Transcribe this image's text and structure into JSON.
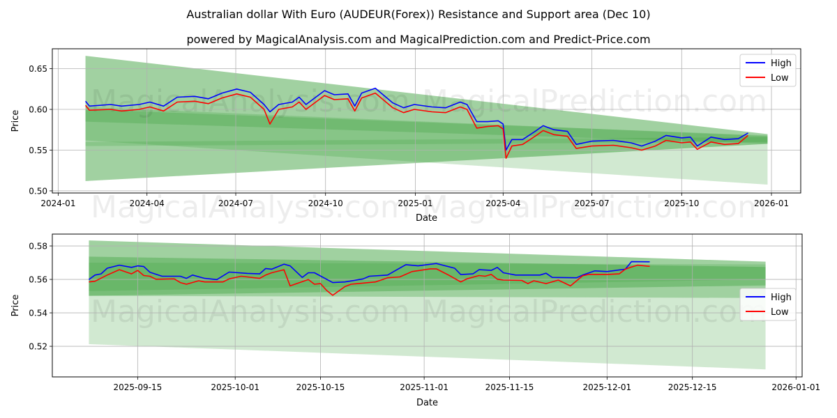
{
  "title": "Australian dollar With Euro (AUDEUR(Forex)) Resistance and Support area (Dec 10)",
  "subtitle": "powered by MagicalAnalysis.com and MagicalPrediction.com and Predict-Price.com",
  "colors": {
    "high": "#0000ff",
    "low": "#ff0000",
    "band": "#2e9a2e"
  },
  "chart_data": [
    {
      "type": "line",
      "xlabel": "Date",
      "ylabel": "Price",
      "xlim": [
        "2023-12-26",
        "2026-01-31"
      ],
      "ylim": [
        0.4974,
        0.6744
      ],
      "grid": true,
      "legend_position": "top-right",
      "legend": [
        "High",
        "Low"
      ],
      "watermarks": [
        "MagicalAnalysis.com",
        "MagicalPrediction.com"
      ],
      "yticks": [
        0.5,
        0.55,
        0.6,
        0.65
      ],
      "ytick_labels": [
        "0.50",
        "0.55",
        "0.60",
        "0.65"
      ],
      "xticks": [
        "2024-01-01",
        "2024-04-01",
        "2024-07-01",
        "2024-10-01",
        "2025-01-01",
        "2025-04-01",
        "2025-07-01",
        "2025-10-01",
        "2026-01-01"
      ],
      "xtick_labels": [
        "2024-01",
        "2024-04",
        "2024-07",
        "2024-10",
        "2025-01",
        "2025-04",
        "2025-07",
        "2025-10",
        "2026-01"
      ],
      "bands": [
        {
          "start": "2024-01-29",
          "end": "2025-12-28",
          "upper": [
            0.6657,
            0.5697
          ],
          "lower": [
            0.512,
            0.5577
          ],
          "opacity": 0.45
        },
        {
          "start": "2024-01-29",
          "end": "2025-12-28",
          "upper": [
            0.603,
            0.567
          ],
          "lower": [
            0.562,
            0.5077
          ],
          "opacity": 0.22
        },
        {
          "start": "2024-01-29",
          "end": "2025-12-28",
          "upper": [
            0.6,
            0.568
          ],
          "lower": [
            0.585,
            0.558
          ],
          "opacity": 0.25
        },
        {
          "start": "2024-01-29",
          "end": "2025-12-28",
          "upper": [
            0.56,
            0.566
          ],
          "lower": [
            0.555,
            0.56
          ],
          "opacity": 0.2
        }
      ],
      "dates": [
        "2024-01-29",
        "2024-02-02",
        "2024-02-24",
        "2024-03-06",
        "2024-03-24",
        "2024-04-04",
        "2024-04-18",
        "2024-05-02",
        "2024-05-20",
        "2024-06-03",
        "2024-06-17",
        "2024-07-02",
        "2024-07-16",
        "2024-07-30",
        "2024-08-05",
        "2024-08-14",
        "2024-08-28",
        "2024-09-04",
        "2024-09-11",
        "2024-09-30",
        "2024-10-10",
        "2024-10-24",
        "2024-10-31",
        "2024-11-07",
        "2024-11-21",
        "2024-12-02",
        "2024-12-09",
        "2024-12-20",
        "2024-12-31",
        "2025-01-18",
        "2025-02-01",
        "2025-02-16",
        "2025-02-23",
        "2025-03-05",
        "2025-03-16",
        "2025-03-27",
        "2025-04-01",
        "2025-04-04",
        "2025-04-10",
        "2025-04-21",
        "2025-05-05",
        "2025-05-12",
        "2025-05-23",
        "2025-06-06",
        "2025-06-15",
        "2025-07-01",
        "2025-07-23",
        "2025-08-10",
        "2025-08-21",
        "2025-09-04",
        "2025-09-15",
        "2025-10-01",
        "2025-10-10",
        "2025-10-17",
        "2025-10-31",
        "2025-11-14",
        "2025-11-28",
        "2025-12-08"
      ],
      "series": [
        {
          "name": "High",
          "values": [
            0.61,
            0.604,
            0.606,
            0.604,
            0.606,
            0.609,
            0.604,
            0.615,
            0.616,
            0.613,
            0.62,
            0.625,
            0.621,
            0.606,
            0.597,
            0.606,
            0.609,
            0.615,
            0.606,
            0.623,
            0.618,
            0.619,
            0.604,
            0.62,
            0.626,
            0.615,
            0.608,
            0.602,
            0.606,
            0.603,
            0.602,
            0.609,
            0.606,
            0.585,
            0.585,
            0.586,
            0.582,
            0.55,
            0.563,
            0.563,
            0.574,
            0.58,
            0.575,
            0.573,
            0.557,
            0.561,
            0.562,
            0.559,
            0.555,
            0.561,
            0.568,
            0.565,
            0.566,
            0.555,
            0.566,
            0.563,
            0.564,
            0.571
          ]
        },
        {
          "name": "Low",
          "values": [
            0.605,
            0.599,
            0.6,
            0.598,
            0.6,
            0.603,
            0.598,
            0.609,
            0.61,
            0.607,
            0.614,
            0.619,
            0.615,
            0.6,
            0.582,
            0.6,
            0.603,
            0.609,
            0.6,
            0.617,
            0.612,
            0.613,
            0.598,
            0.614,
            0.62,
            0.609,
            0.602,
            0.596,
            0.6,
            0.597,
            0.596,
            0.603,
            0.6,
            0.577,
            0.579,
            0.58,
            0.576,
            0.54,
            0.555,
            0.557,
            0.568,
            0.574,
            0.569,
            0.567,
            0.552,
            0.555,
            0.556,
            0.553,
            0.55,
            0.555,
            0.562,
            0.559,
            0.56,
            0.551,
            0.56,
            0.557,
            0.558,
            0.568
          ]
        }
      ]
    },
    {
      "type": "line",
      "xlabel": "Date",
      "ylabel": "Price",
      "xlim": [
        "2025-09-01",
        "2026-01-02"
      ],
      "ylim": [
        0.5017,
        0.5871
      ],
      "grid": true,
      "legend_position": "center-right",
      "legend": [
        "High",
        "Low"
      ],
      "watermarks": [
        "MagicalAnalysis.com",
        "MagicalPrediction.com"
      ],
      "yticks": [
        0.52,
        0.54,
        0.56,
        0.58
      ],
      "ytick_labels": [
        "0.52",
        "0.54",
        "0.56",
        "0.58"
      ],
      "xticks": [
        "2025-09-15",
        "2025-10-01",
        "2025-10-15",
        "2025-11-01",
        "2025-11-15",
        "2025-12-01",
        "2025-12-15",
        "2026-01-01"
      ],
      "xtick_labels": [
        "2025-09-15",
        "2025-10-01",
        "2025-10-15",
        "2025-11-01",
        "2025-11-15",
        "2025-12-01",
        "2025-12-15",
        "2026-01-01"
      ],
      "bands": [
        {
          "start": "2025-09-07",
          "end": "2025-12-27",
          "upper": [
            0.5833,
            0.5706
          ],
          "lower": [
            0.5213,
            0.5062
          ],
          "opacity": 0.22
        },
        {
          "start": "2025-09-07",
          "end": "2025-12-27",
          "upper": [
            0.5833,
            0.5706
          ],
          "lower": [
            0.5502,
            0.5489
          ],
          "opacity": 0.3
        },
        {
          "start": "2025-09-07",
          "end": "2025-12-27",
          "upper": [
            0.5736,
            0.5674
          ],
          "lower": [
            0.5502,
            0.5564
          ],
          "opacity": 0.35
        },
        {
          "start": "2025-09-07",
          "end": "2025-12-27",
          "upper": [
            0.57,
            0.569
          ],
          "lower": [
            0.553,
            0.56
          ],
          "opacity": 0.2
        }
      ],
      "series": [
        {
          "name": "High",
          "points": [
            [
              "2025-09-07",
              0.5599
            ],
            [
              "2025-09-08",
              0.5626
            ],
            [
              "2025-09-09",
              0.5633
            ],
            [
              "2025-09-10",
              0.5667
            ],
            [
              "2025-09-12",
              0.5685
            ],
            [
              "2025-09-14",
              0.5672
            ],
            [
              "2025-09-15",
              0.5681
            ],
            [
              "2025-09-16",
              0.5677
            ],
            [
              "2025-09-17",
              0.5643
            ],
            [
              "2025-09-19",
              0.5619
            ],
            [
              "2025-09-22",
              0.5619
            ],
            [
              "2025-09-23",
              0.5606
            ],
            [
              "2025-09-24",
              0.5626
            ],
            [
              "2025-09-26",
              0.5606
            ],
            [
              "2025-09-28",
              0.5599
            ],
            [
              "2025-09-30",
              0.5644
            ],
            [
              "2025-10-03",
              0.5636
            ],
            [
              "2025-10-05",
              0.5633
            ],
            [
              "2025-10-06",
              0.5665
            ],
            [
              "2025-10-07",
              0.5661
            ],
            [
              "2025-10-09",
              0.5691
            ],
            [
              "2025-10-10",
              0.5681
            ],
            [
              "2025-10-12",
              0.5612
            ],
            [
              "2025-10-13",
              0.564
            ],
            [
              "2025-10-14",
              0.564
            ],
            [
              "2025-10-17",
              0.5581
            ],
            [
              "2025-10-19",
              0.5585
            ],
            [
              "2025-10-22",
              0.5603
            ],
            [
              "2025-10-23",
              0.5619
            ],
            [
              "2025-10-26",
              0.5626
            ],
            [
              "2025-10-27",
              0.5647
            ],
            [
              "2025-10-29",
              0.5688
            ],
            [
              "2025-10-31",
              0.5681
            ],
            [
              "2025-11-03",
              0.5695
            ],
            [
              "2025-11-06",
              0.5667
            ],
            [
              "2025-11-07",
              0.5629
            ],
            [
              "2025-11-09",
              0.5633
            ],
            [
              "2025-11-10",
              0.5658
            ],
            [
              "2025-11-12",
              0.5654
            ],
            [
              "2025-11-13",
              0.5672
            ],
            [
              "2025-11-14",
              0.564
            ],
            [
              "2025-11-16",
              0.5626
            ],
            [
              "2025-11-20",
              0.5626
            ],
            [
              "2025-11-21",
              0.5637
            ],
            [
              "2025-11-22",
              0.5612
            ],
            [
              "2025-11-26",
              0.561
            ],
            [
              "2025-11-27",
              0.5626
            ],
            [
              "2025-11-29",
              0.5651
            ],
            [
              "2025-12-01",
              0.5647
            ],
            [
              "2025-12-04",
              0.5661
            ],
            [
              "2025-12-05",
              0.5706
            ],
            [
              "2025-12-08",
              0.5705
            ]
          ]
        },
        {
          "name": "Low",
          "points": [
            [
              "2025-09-07",
              0.5585
            ],
            [
              "2025-09-08",
              0.5589
            ],
            [
              "2025-09-10",
              0.5626
            ],
            [
              "2025-09-12",
              0.5658
            ],
            [
              "2025-09-14",
              0.5633
            ],
            [
              "2025-09-15",
              0.5654
            ],
            [
              "2025-09-16",
              0.5623
            ],
            [
              "2025-09-17",
              0.5619
            ],
            [
              "2025-09-18",
              0.5601
            ],
            [
              "2025-09-21",
              0.5603
            ],
            [
              "2025-09-22",
              0.5581
            ],
            [
              "2025-09-23",
              0.5571
            ],
            [
              "2025-09-25",
              0.5592
            ],
            [
              "2025-09-26",
              0.5585
            ],
            [
              "2025-09-29",
              0.5585
            ],
            [
              "2025-09-30",
              0.5603
            ],
            [
              "2025-10-02",
              0.5619
            ],
            [
              "2025-10-05",
              0.5606
            ],
            [
              "2025-10-06",
              0.5626
            ],
            [
              "2025-10-07",
              0.564
            ],
            [
              "2025-10-09",
              0.5658
            ],
            [
              "2025-10-10",
              0.5561
            ],
            [
              "2025-10-13",
              0.5599
            ],
            [
              "2025-10-14",
              0.5571
            ],
            [
              "2025-10-15",
              0.5575
            ],
            [
              "2025-10-16",
              0.5534
            ],
            [
              "2025-10-17",
              0.5505
            ],
            [
              "2025-10-19",
              0.5557
            ],
            [
              "2025-10-20",
              0.5571
            ],
            [
              "2025-10-24",
              0.5585
            ],
            [
              "2025-10-26",
              0.561
            ],
            [
              "2025-10-28",
              0.5615
            ],
            [
              "2025-10-30",
              0.5647
            ],
            [
              "2025-11-02",
              0.5663
            ],
            [
              "2025-11-03",
              0.5663
            ],
            [
              "2025-11-05",
              0.5626
            ],
            [
              "2025-11-07",
              0.5585
            ],
            [
              "2025-11-08",
              0.5603
            ],
            [
              "2025-11-10",
              0.5623
            ],
            [
              "2025-11-11",
              0.5619
            ],
            [
              "2025-11-12",
              0.563
            ],
            [
              "2025-11-13",
              0.5601
            ],
            [
              "2025-11-14",
              0.5596
            ],
            [
              "2025-11-17",
              0.5594
            ],
            [
              "2025-11-18",
              0.5575
            ],
            [
              "2025-11-19",
              0.5592
            ],
            [
              "2025-11-21",
              0.5575
            ],
            [
              "2025-11-23",
              0.5596
            ],
            [
              "2025-11-25",
              0.5561
            ],
            [
              "2025-11-27",
              0.5622
            ],
            [
              "2025-11-28",
              0.563
            ],
            [
              "2025-12-01",
              0.563
            ],
            [
              "2025-12-03",
              0.5633
            ],
            [
              "2025-12-04",
              0.5661
            ],
            [
              "2025-12-05",
              0.5674
            ],
            [
              "2025-12-06",
              0.5685
            ],
            [
              "2025-12-08",
              0.5678
            ]
          ]
        }
      ]
    }
  ]
}
